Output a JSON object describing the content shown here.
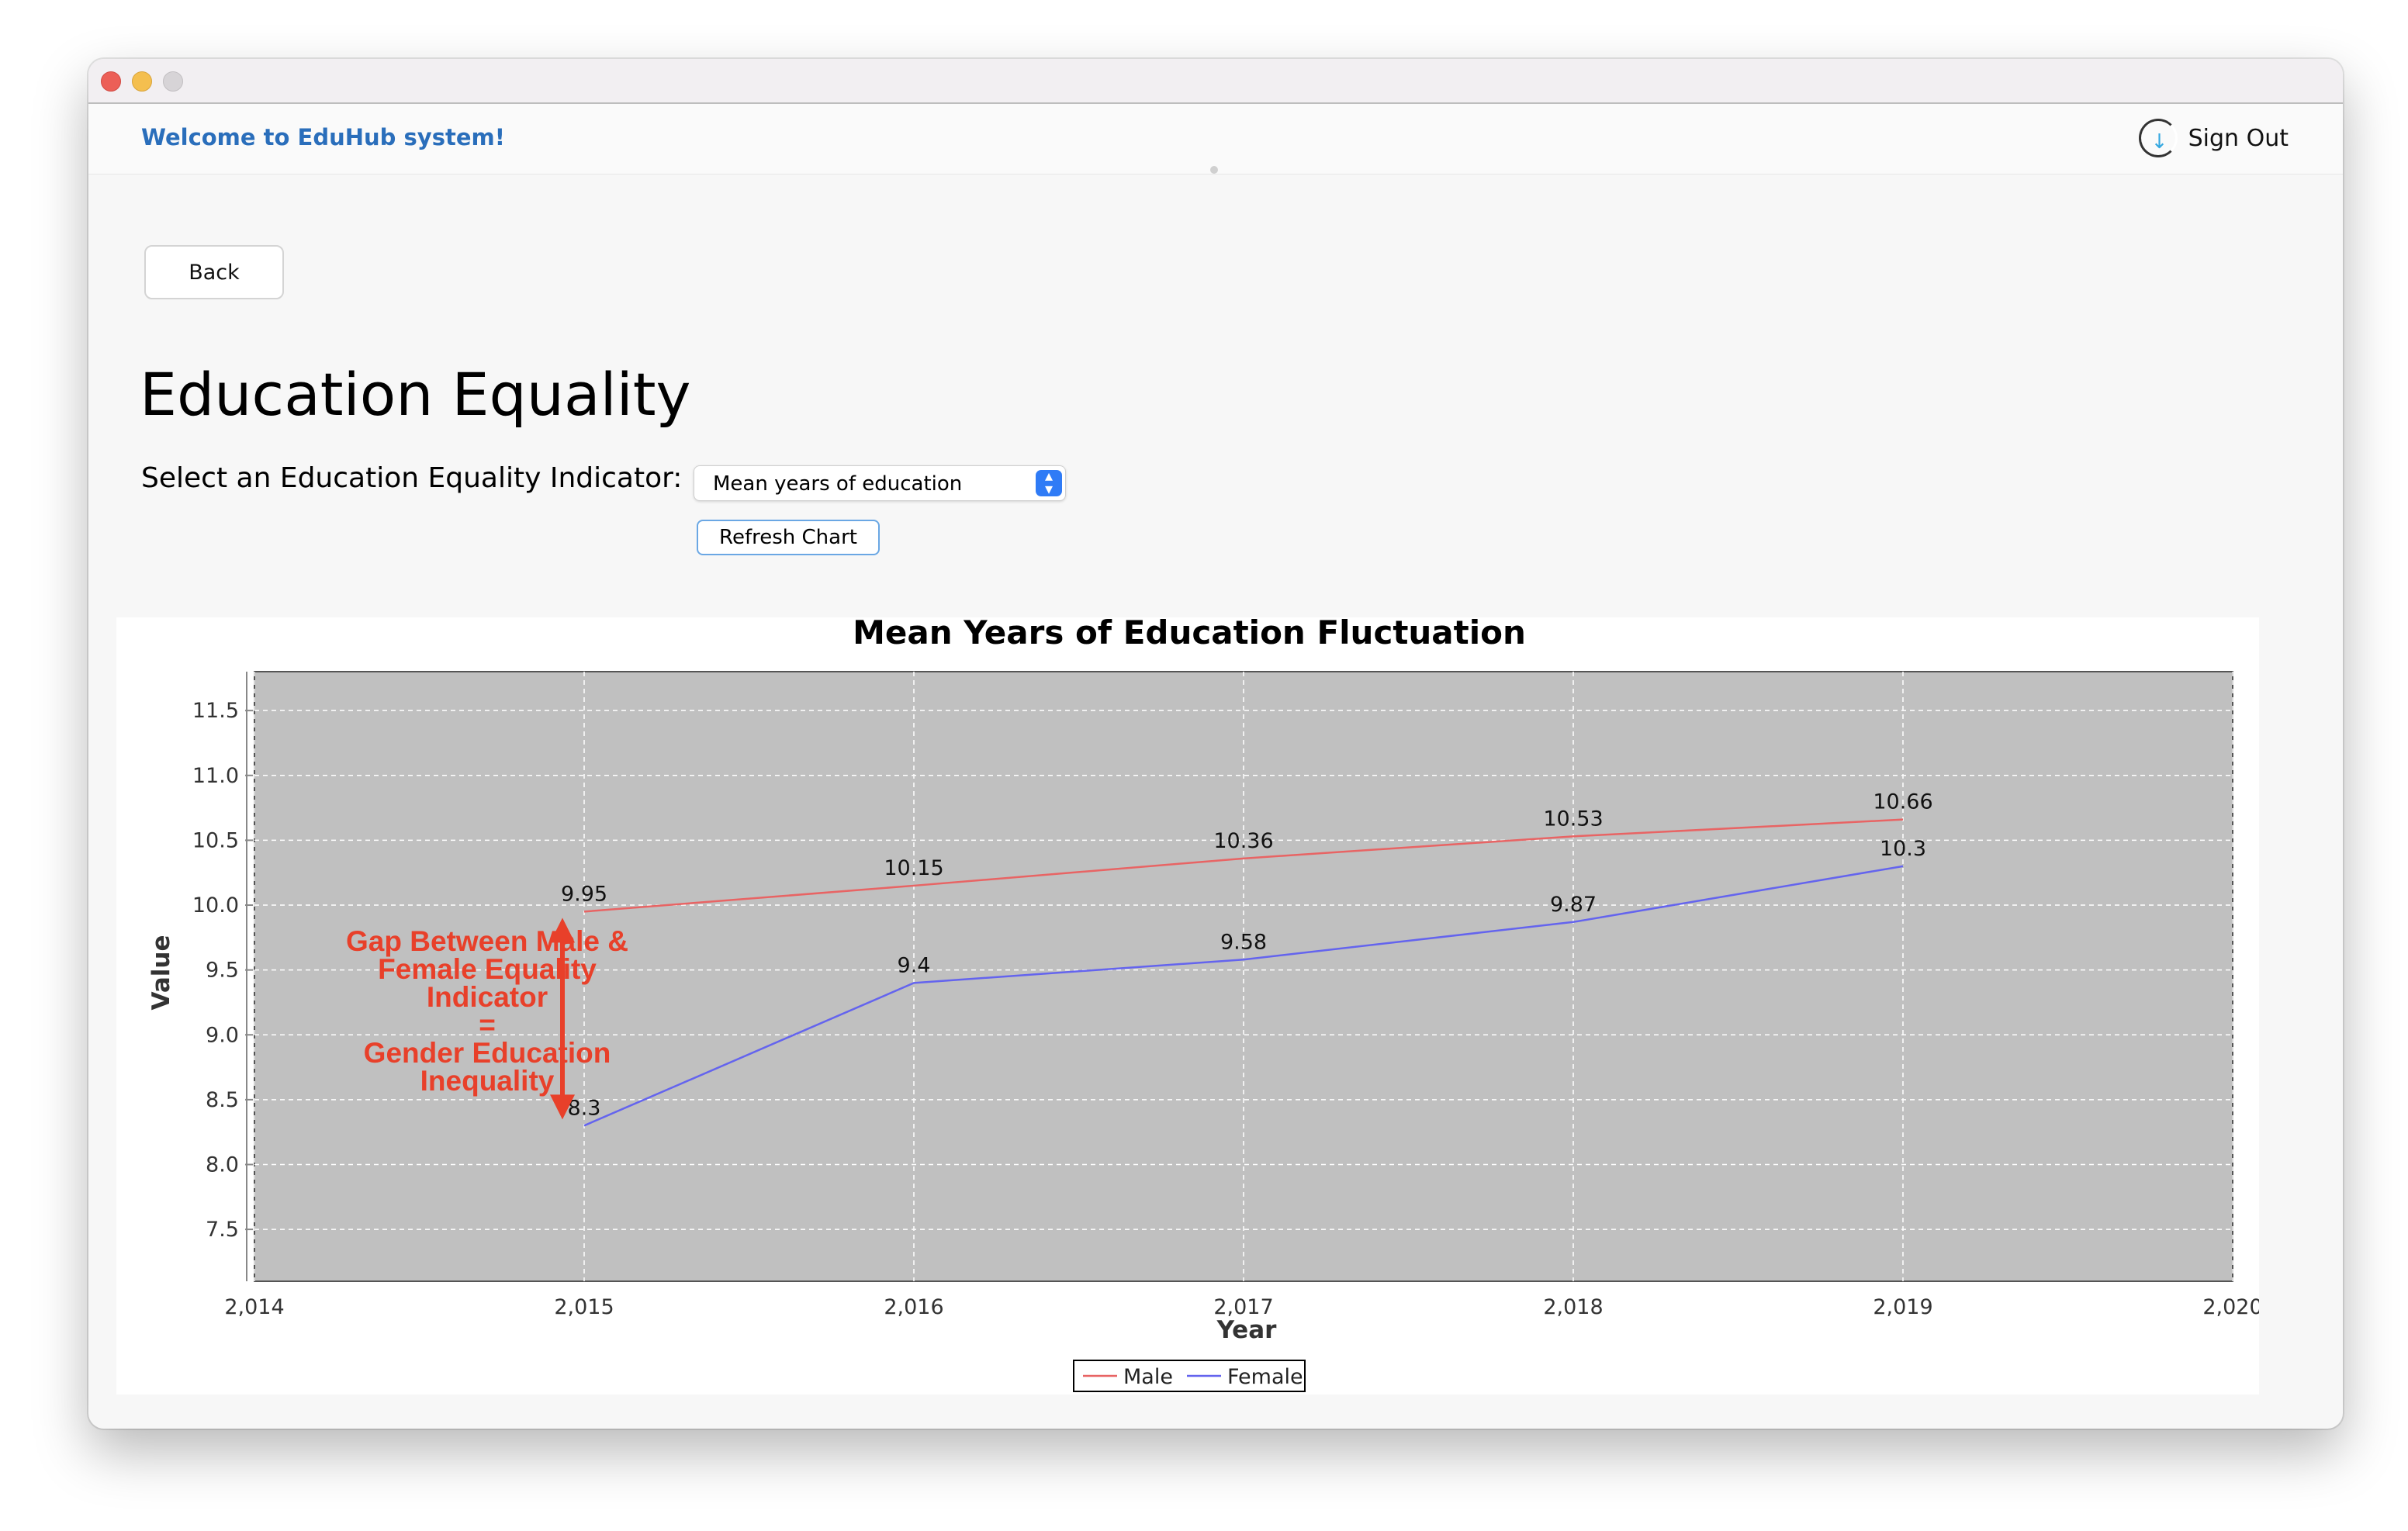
{
  "header": {
    "welcome": "Welcome to EduHub system!",
    "sign_out": "Sign Out"
  },
  "nav": {
    "back_label": "Back"
  },
  "page": {
    "title": "Education Equality",
    "indicator_label": "Select an Education Equality Indicator:",
    "indicator_value": "Mean years of education",
    "refresh_label": "Refresh Chart"
  },
  "icons": {
    "sign_out": "sign-out-icon",
    "select_arrows": "select-arrows-icon"
  },
  "colors": {
    "accent": "#2a6ebb",
    "male": "#e86464",
    "female": "#6464ee",
    "annotation": "#e8402a",
    "plot_bg": "#c0c0c0"
  },
  "chart_data": {
    "type": "line",
    "title": "Mean Years of Education Fluctuation",
    "xlabel": "Year",
    "ylabel": "Value",
    "xlim": [
      2014,
      2020
    ],
    "ylim": [
      7.1,
      11.8
    ],
    "x_ticks": [
      "2,014",
      "2,015",
      "2,016",
      "2,017",
      "2,018",
      "2,019",
      "2,020"
    ],
    "y_ticks": [
      "7.5",
      "8.0",
      "8.5",
      "9.0",
      "9.5",
      "10.0",
      "10.5",
      "11.0",
      "11.5"
    ],
    "grid": true,
    "legend_position": "bottom-center",
    "x": [
      2015,
      2016,
      2017,
      2018,
      2019
    ],
    "series": [
      {
        "name": "Male",
        "values": [
          9.95,
          10.15,
          10.36,
          10.53,
          10.66
        ],
        "color": "#e86464"
      },
      {
        "name": "Female",
        "values": [
          8.3,
          9.4,
          9.58,
          9.87,
          10.3
        ],
        "color": "#6464ee"
      }
    ],
    "data_labels": {
      "male": [
        "9.95",
        "10.15",
        "10.36",
        "10.53",
        "10.66"
      ],
      "female": [
        "8.3",
        "9.4",
        "9.58",
        "9.87",
        "10.3"
      ]
    },
    "annotation": {
      "lines": [
        "Gap Between Male &",
        "Female Equality",
        "Indicator",
        "=",
        "Gender Education",
        "Inequality"
      ],
      "arrow_from": 9.95,
      "arrow_to": 8.3
    }
  }
}
